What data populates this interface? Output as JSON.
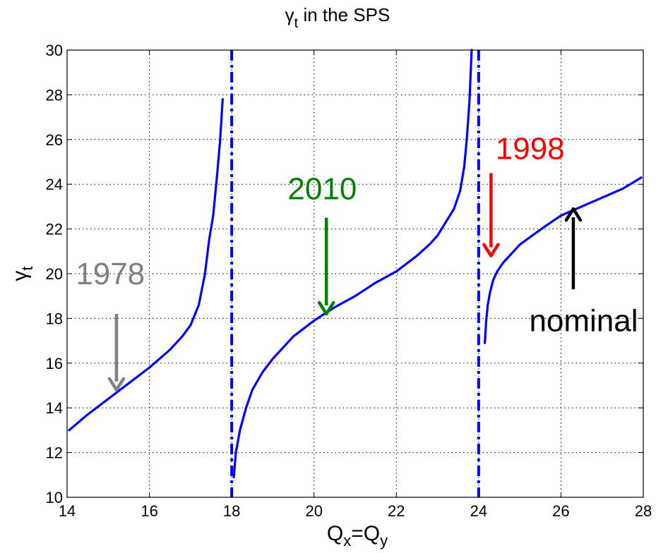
{
  "chart_data": {
    "type": "line",
    "title": {
      "main": "γ",
      "sub": "t",
      "rest": " in the SPS"
    },
    "xlabel": {
      "q1": "Q",
      "s1": "x",
      "eq": "=Q",
      "s2": "y"
    },
    "ylabel": {
      "main": "γ",
      "sub": "t"
    },
    "xlim": [
      14,
      28
    ],
    "ylim": [
      10,
      30
    ],
    "xticks": [
      14,
      16,
      18,
      20,
      22,
      24,
      26,
      28
    ],
    "yticks": [
      10,
      12,
      14,
      16,
      18,
      20,
      22,
      24,
      26,
      28,
      30
    ],
    "grid": true,
    "colors": {
      "curve": "#0000ff",
      "vline": "#0000ee",
      "c1978": "#808080",
      "c2010": "#008000",
      "c1998": "#ff0000",
      "cnominal": "#000000"
    },
    "vertical_lines": [
      18,
      24
    ],
    "series": [
      {
        "x": [
          14.05,
          14.5,
          15.0,
          15.5,
          16.0,
          16.5,
          16.8,
          17.0,
          17.2,
          17.35,
          17.45,
          17.55,
          17.65,
          17.72,
          17.78
        ],
        "y": [
          13.0,
          13.7,
          14.4,
          15.1,
          15.8,
          16.6,
          17.2,
          17.7,
          18.6,
          20.0,
          21.5,
          22.6,
          24.5,
          26.0,
          27.8
        ]
      },
      {
        "x": [
          18.05,
          18.1,
          18.2,
          18.35,
          18.5,
          18.75,
          19.0,
          19.5,
          20.0,
          20.5,
          21.0,
          21.5,
          22.0,
          22.5,
          22.8,
          23.0,
          23.2,
          23.4,
          23.55,
          23.65,
          23.72,
          23.78,
          23.83
        ],
        "y": [
          10.9,
          12.0,
          13.0,
          14.0,
          14.8,
          15.6,
          16.2,
          17.2,
          17.9,
          18.5,
          19.0,
          19.6,
          20.1,
          20.8,
          21.3,
          21.7,
          22.3,
          22.9,
          23.7,
          24.8,
          26.2,
          27.8,
          30.0
        ]
      },
      {
        "x": [
          24.15,
          24.18,
          24.22,
          24.28,
          24.35,
          24.45,
          24.6,
          24.8,
          25.0,
          25.3,
          25.6,
          26.0,
          26.5,
          27.0,
          27.5,
          27.95
        ],
        "y": [
          16.9,
          17.8,
          18.6,
          19.2,
          19.7,
          20.1,
          20.5,
          20.9,
          21.3,
          21.7,
          22.1,
          22.6,
          23.0,
          23.4,
          23.8,
          24.3
        ]
      }
    ],
    "annotations": [
      {
        "id": "a1978",
        "text": "1978",
        "color": "#808080",
        "tx": 15.05,
        "ty": 20.0,
        "ax": 15.2,
        "ay1": 18.2,
        "ay2": 14.8
      },
      {
        "id": "a2010",
        "text": "2010",
        "color": "#008000",
        "tx": 20.2,
        "ty": 23.8,
        "ax": 20.3,
        "ay1": 22.5,
        "ay2": 18.2
      },
      {
        "id": "a1998",
        "text": "1998",
        "color": "#ff0000",
        "tx": 25.25,
        "ty": 25.6,
        "ax": 24.3,
        "ay1": 24.5,
        "ay2": 20.8
      },
      {
        "id": "anominal",
        "text": "nominal",
        "color": "#000000",
        "tx": 26.55,
        "ty": 17.9,
        "ax": 26.3,
        "ay1": 19.3,
        "ay2": 22.9
      }
    ]
  }
}
